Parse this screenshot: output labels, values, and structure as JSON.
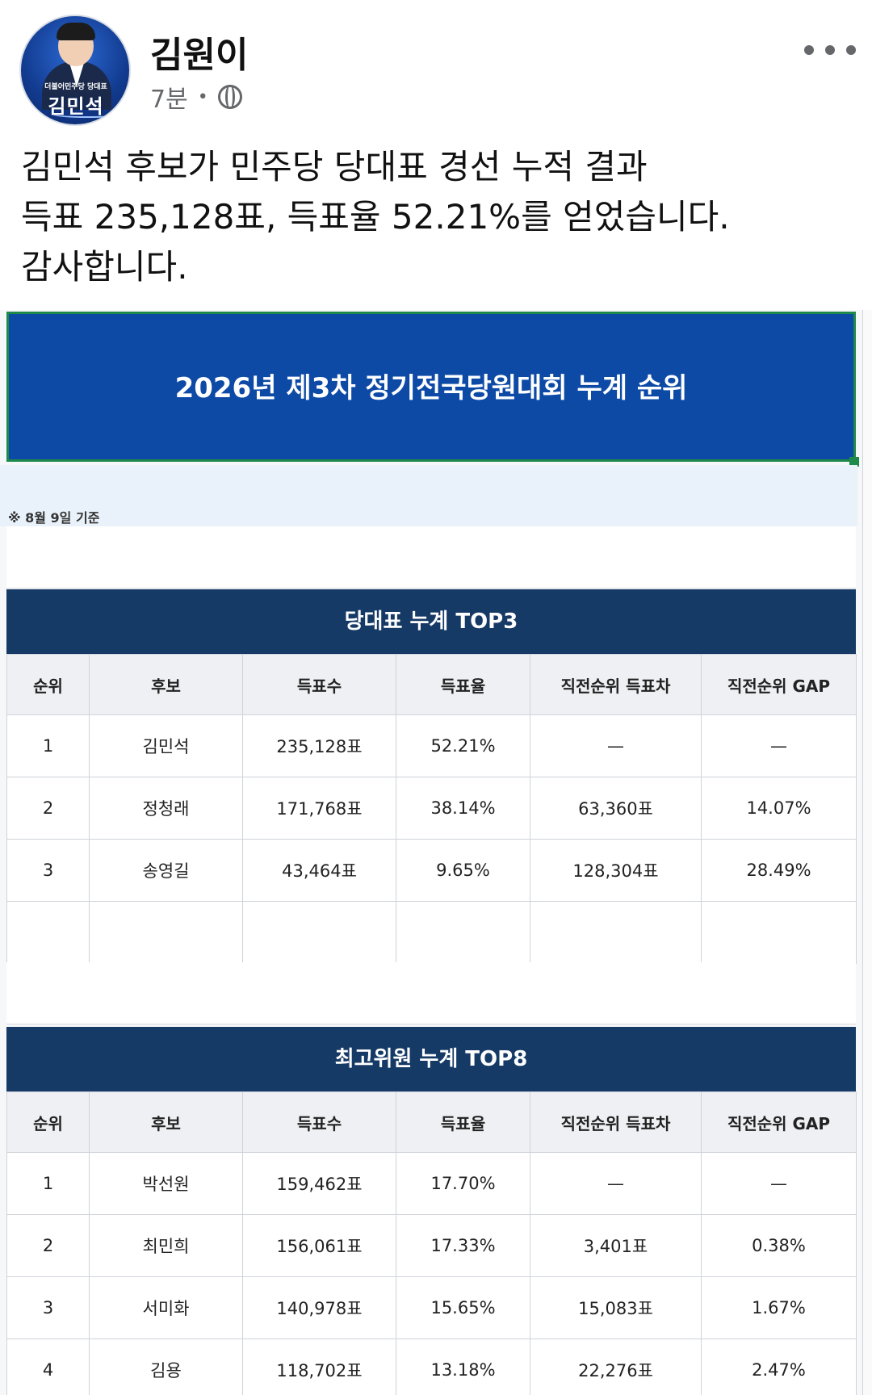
{
  "author": {
    "name": "김원이",
    "time": "7분",
    "avatar_tag": "더불어민주당 당대표",
    "avatar_name": "김민석"
  },
  "post": {
    "lines": [
      "김민석 후보가 민주당 당대표 경선 누적 결과",
      "득표 235,128표, 득표율 52.21%를 얻었습니다.",
      "감사합니다."
    ]
  },
  "image": {
    "banner_title": "2026년 제3차 정기전국당원대회 누계 순위",
    "note": "※ 8월 9일 기준",
    "colors": {
      "banner": "#0d4aa6",
      "section_header": "#163a66"
    },
    "leader_table": {
      "title": "당대표 누계 TOP3",
      "headers": [
        "순위",
        "후보",
        "득표수",
        "득표율",
        "직전순위 득표차",
        "직전순위 GAP"
      ],
      "rows": [
        [
          "1",
          "김민석",
          "235,128표",
          "52.21%",
          "—",
          "—"
        ],
        [
          "2",
          "정청래",
          "171,768표",
          "38.14%",
          "63,360표",
          "14.07%"
        ],
        [
          "3",
          "송영길",
          "43,464표",
          "9.65%",
          "128,304표",
          "28.49%"
        ],
        [
          "",
          "",
          "",
          "",
          "",
          ""
        ]
      ]
    },
    "council_table": {
      "title": "최고위원 누계 TOP8",
      "headers": [
        "순위",
        "후보",
        "득표수",
        "득표율",
        "직전순위 득표차",
        "직전순위 GAP"
      ],
      "rows": [
        [
          "1",
          "박선원",
          "159,462표",
          "17.70%",
          "—",
          "—"
        ],
        [
          "2",
          "최민희",
          "156,061표",
          "17.33%",
          "3,401표",
          "0.38%"
        ],
        [
          "3",
          "서미화",
          "140,978표",
          "15.65%",
          "15,083표",
          "1.67%"
        ],
        [
          "4",
          "김용",
          "118,702표",
          "13.18%",
          "22,276표",
          "2.47%"
        ]
      ]
    }
  },
  "icons": {
    "more": "more-dots-icon",
    "audience": "globe-icon"
  }
}
